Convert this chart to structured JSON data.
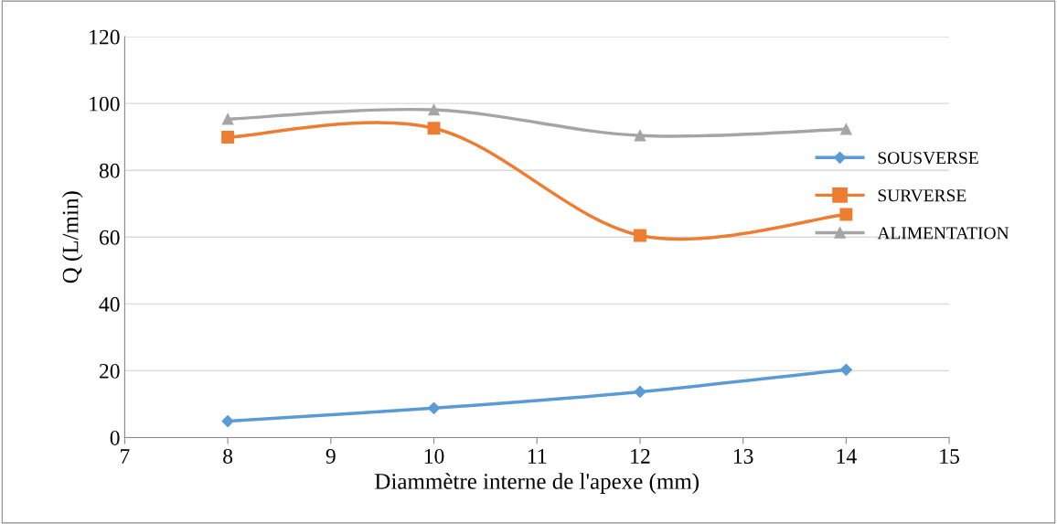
{
  "chart_data": {
    "type": "line",
    "xlabel": "Diammètre interne de l'apexe (mm)",
    "ylabel": "Q (L/min)",
    "x": [
      8,
      10,
      12,
      14
    ],
    "series": [
      {
        "name": "SOUSVERSE",
        "color": "#5b9bd5",
        "marker": "diamond",
        "values": [
          4.9,
          8.8,
          13.7,
          20.3
        ]
      },
      {
        "name": "SURVERSE",
        "color": "#ed7d31",
        "marker": "square",
        "values": [
          89.9,
          92.6,
          60.5,
          66.8
        ]
      },
      {
        "name": "ALIMENTATION",
        "color": "#a5a5a5",
        "marker": "triangle",
        "values": [
          95.3,
          98.1,
          90.4,
          92.3
        ]
      }
    ],
    "xlim": [
      7,
      15
    ],
    "xticks": [
      7,
      8,
      9,
      10,
      11,
      12,
      13,
      14,
      15
    ],
    "ylim": [
      0,
      120
    ],
    "yticks": [
      0,
      20,
      40,
      60,
      80,
      100,
      120
    ],
    "grid": "y",
    "legend": "right",
    "line_style": "solid"
  }
}
